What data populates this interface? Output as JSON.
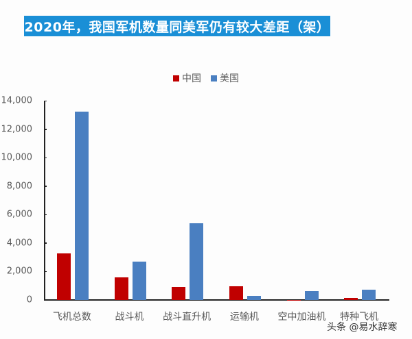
{
  "title": "2020年，我国军机数量同美军仍有较大差距（架）",
  "colors": {
    "title_bg": "#1a8fd6",
    "china": "#c00000",
    "usa": "#4a7fc1"
  },
  "legend": [
    {
      "label": "中国",
      "color": "#c00000"
    },
    {
      "label": "美国",
      "color": "#4a7fc1"
    }
  ],
  "y_axis": {
    "ticks": [
      "0",
      "2,000",
      "4,000",
      "6,000",
      "8,000",
      "10,000",
      "12,000",
      "14,000"
    ]
  },
  "categories": [
    "飞机总数",
    "战斗机",
    "战斗直升机",
    "运输机",
    "空中加油机",
    "特种飞机"
  ],
  "watermark": "头条 @易水辞寒",
  "chart_data": {
    "type": "bar",
    "title": "2020年，我国军机数量同美军仍有较大差距（架）",
    "xlabel": "",
    "ylabel": "",
    "ylim": [
      0,
      14000
    ],
    "grid": false,
    "legend_position": "top",
    "categories": [
      "飞机总数",
      "战斗机",
      "战斗直升机",
      "运输机",
      "空中加油机",
      "特种飞机"
    ],
    "series": [
      {
        "name": "中国",
        "color": "#c00000",
        "values": [
          3260,
          1590,
          900,
          950,
          3,
          130
        ]
      },
      {
        "name": "美国",
        "color": "#4a7fc1",
        "values": [
          13250,
          2700,
          5400,
          280,
          620,
          740
        ]
      }
    ]
  }
}
